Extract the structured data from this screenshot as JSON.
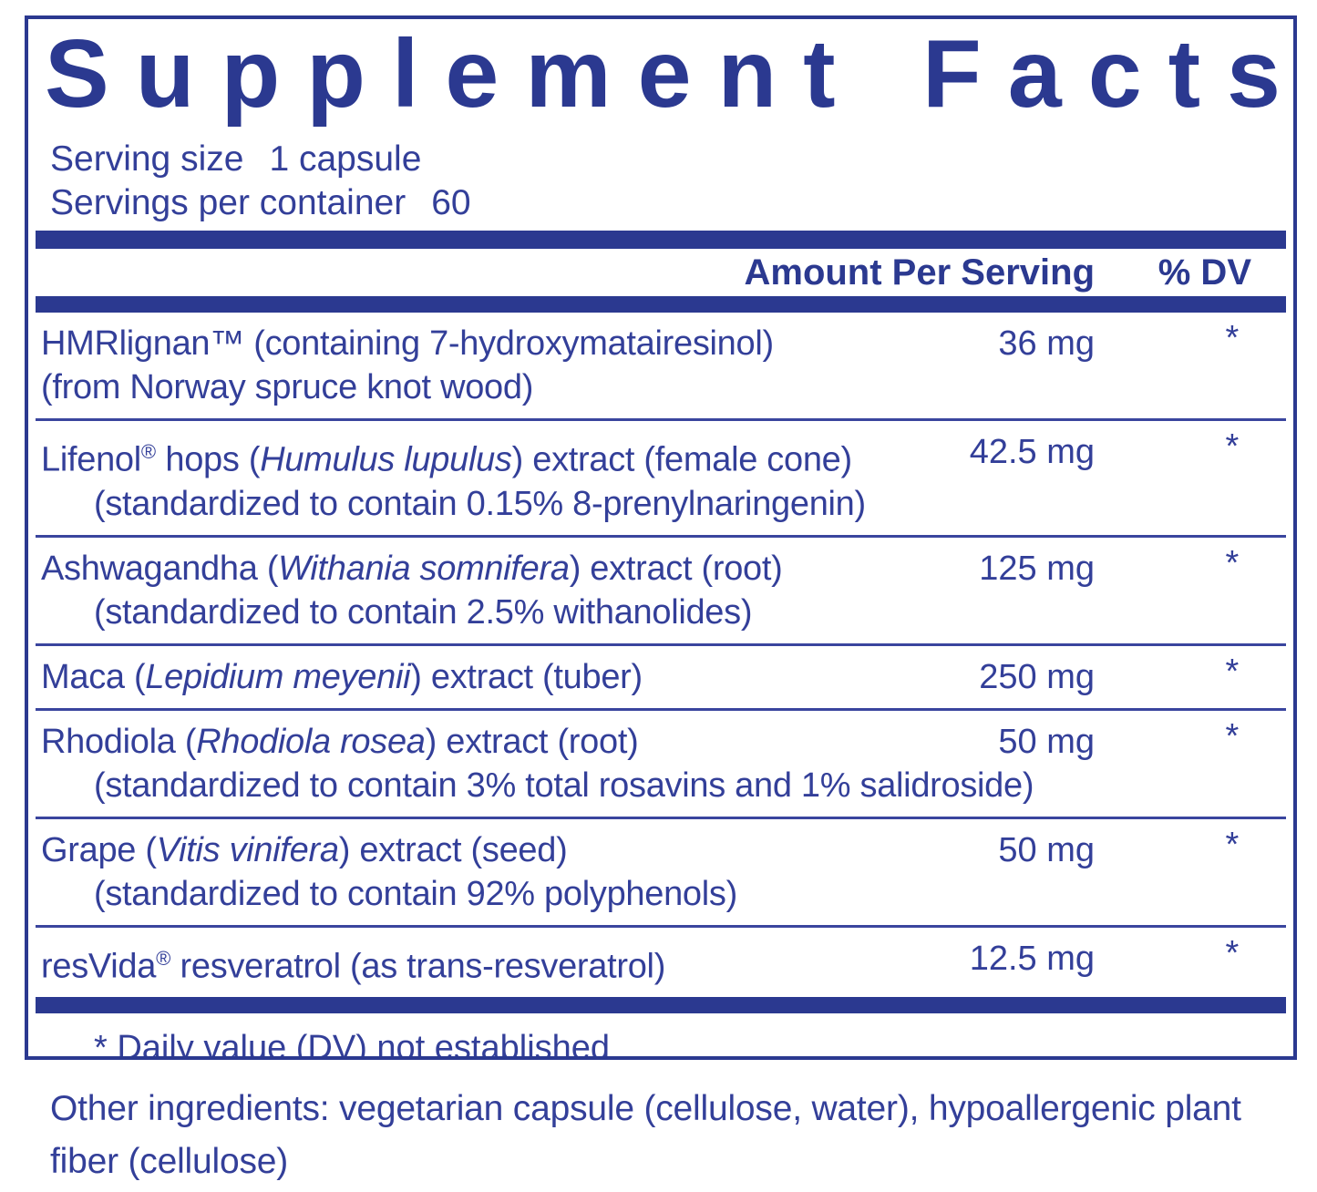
{
  "colors": {
    "navy": "#2B3990",
    "ink": "#333F99"
  },
  "panel": {
    "title": "Supplement Facts",
    "serving": [
      {
        "label": "Serving size",
        "value": "1 capsule"
      },
      {
        "label": "Servings per container",
        "value": "60"
      }
    ],
    "columns": {
      "amount": "Amount Per Serving",
      "dv": "% DV"
    },
    "rows": [
      {
        "line1": [
          {
            "t": "HMRlignan™ (containing 7-hydroxymatairesinol)"
          }
        ],
        "line2": [
          {
            "t": "(from Norway spruce knot wood)"
          }
        ],
        "line2_indent": false,
        "amount": "36 mg",
        "dv": "*"
      },
      {
        "line1": [
          {
            "t": "Lifenol"
          },
          {
            "t": "®",
            "sup": true
          },
          {
            "t": " hops ("
          },
          {
            "t": "Humulus lupulus",
            "i": true
          },
          {
            "t": ") extract (female cone)"
          }
        ],
        "line2": [
          {
            "t": "(standardized to contain 0.15% 8-prenylnaringenin)"
          }
        ],
        "line2_indent": true,
        "amount": "42.5 mg",
        "dv": "*"
      },
      {
        "line1": [
          {
            "t": "Ashwagandha ("
          },
          {
            "t": "Withania somnifera",
            "i": true
          },
          {
            "t": ") extract (root)"
          }
        ],
        "line2": [
          {
            "t": "(standardized to contain 2.5% withanolides)"
          }
        ],
        "line2_indent": true,
        "amount": "125 mg",
        "dv": "*"
      },
      {
        "line1": [
          {
            "t": "Maca ("
          },
          {
            "t": "Lepidium meyenii",
            "i": true
          },
          {
            "t": ") extract (tuber)"
          }
        ],
        "amount": "250 mg",
        "dv": "*"
      },
      {
        "line1": [
          {
            "t": "Rhodiola ("
          },
          {
            "t": "Rhodiola rosea",
            "i": true
          },
          {
            "t": ") extract (root)"
          }
        ],
        "line2": [
          {
            "t": "(standardized to contain 3% total rosavins and 1% salidroside)"
          }
        ],
        "line2_indent": true,
        "amount": "50 mg",
        "dv": "*"
      },
      {
        "line1": [
          {
            "t": "Grape ("
          },
          {
            "t": "Vitis vinifera",
            "i": true
          },
          {
            "t": ") extract (seed)"
          }
        ],
        "line2": [
          {
            "t": "(standardized to contain 92% polyphenols)"
          }
        ],
        "line2_indent": true,
        "amount": "50 mg",
        "dv": "*"
      },
      {
        "line1": [
          {
            "t": "resVida"
          },
          {
            "t": "®",
            "sup": true
          },
          {
            "t": " resveratrol (as trans-resveratrol)"
          }
        ],
        "amount": "12.5 mg",
        "dv": "*"
      }
    ],
    "footnote": "* Daily value (DV) not established"
  },
  "other_ingredients": "Other ingredients: vegetarian capsule (cellulose, water), hypoallergenic plant fiber (cellulose)"
}
